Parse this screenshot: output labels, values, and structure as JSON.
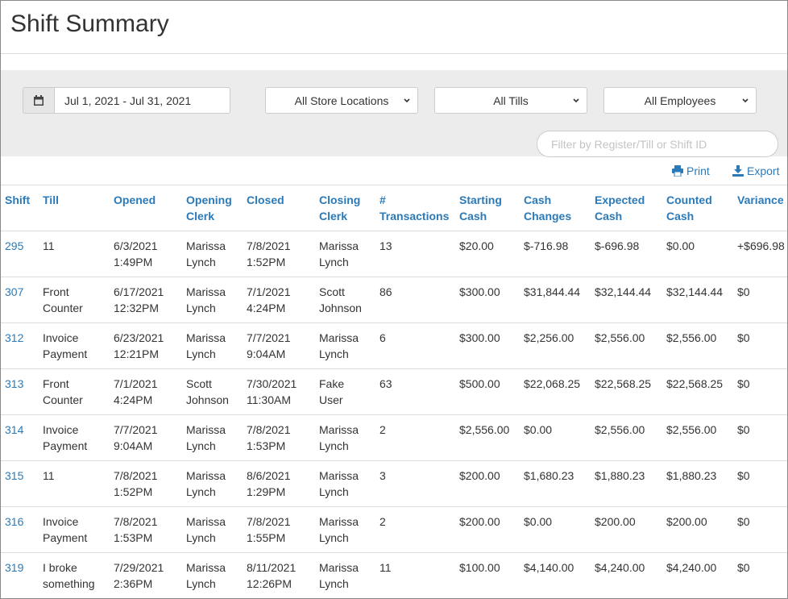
{
  "header": {
    "title": "Shift Summary"
  },
  "filters": {
    "date_range": "Jul 1, 2021 - Jul 31, 2021",
    "location": "All Store Locations",
    "till": "All Tills",
    "employee": "All Employees",
    "search_placeholder": "Filter by Register/Till or Shift ID"
  },
  "actions": {
    "print": "Print",
    "export": "Export"
  },
  "table": {
    "columns": [
      "Shift",
      "Till",
      "Opened",
      "Opening\nClerk",
      "Closed",
      "Closing\nClerk",
      "#\nTransactions",
      "Starting\nCash",
      "Cash\nChanges",
      "Expected\nCash",
      "Counted\nCash",
      "Variance"
    ],
    "rows": [
      [
        "295",
        "11",
        "6/3/2021\n1:49PM",
        "Marissa\nLynch",
        "7/8/2021\n1:52PM",
        "Marissa\nLynch",
        "13",
        "$20.00",
        "$-716.98",
        "$-696.98",
        "$0.00",
        "+$696.98"
      ],
      [
        "307",
        "Front\nCounter",
        "6/17/2021\n12:32PM",
        "Marissa\nLynch",
        "7/1/2021\n4:24PM",
        "Scott\nJohnson",
        "86",
        "$300.00",
        "$31,844.44",
        "$32,144.44",
        "$32,144.44",
        "$0"
      ],
      [
        "312",
        "Invoice\nPayment",
        "6/23/2021\n12:21PM",
        "Marissa\nLynch",
        "7/7/2021\n9:04AM",
        "Marissa\nLynch",
        "6",
        "$300.00",
        "$2,256.00",
        "$2,556.00",
        "$2,556.00",
        "$0"
      ],
      [
        "313",
        "Front\nCounter",
        "7/1/2021\n4:24PM",
        "Scott\nJohnson",
        "7/30/2021\n11:30AM",
        "Fake\nUser",
        "63",
        "$500.00",
        "$22,068.25",
        "$22,568.25",
        "$22,568.25",
        "$0"
      ],
      [
        "314",
        "Invoice\nPayment",
        "7/7/2021\n9:04AM",
        "Marissa\nLynch",
        "7/8/2021\n1:53PM",
        "Marissa\nLynch",
        "2",
        "$2,556.00",
        "$0.00",
        "$2,556.00",
        "$2,556.00",
        "$0"
      ],
      [
        "315",
        "11",
        "7/8/2021\n1:52PM",
        "Marissa\nLynch",
        "8/6/2021\n1:29PM",
        "Marissa\nLynch",
        "3",
        "$200.00",
        "$1,680.23",
        "$1,880.23",
        "$1,880.23",
        "$0"
      ],
      [
        "316",
        "Invoice\nPayment",
        "7/8/2021\n1:53PM",
        "Marissa\nLynch",
        "7/8/2021\n1:55PM",
        "Marissa\nLynch",
        "2",
        "$200.00",
        "$0.00",
        "$200.00",
        "$200.00",
        "$0"
      ],
      [
        "319",
        "I broke\nsomething",
        "7/29/2021\n2:36PM",
        "Marissa\nLynch",
        "8/11/2021\n12:26PM",
        "Marissa\nLynch",
        "11",
        "$100.00",
        "$4,140.00",
        "$4,240.00",
        "$4,240.00",
        "$0"
      ]
    ]
  }
}
